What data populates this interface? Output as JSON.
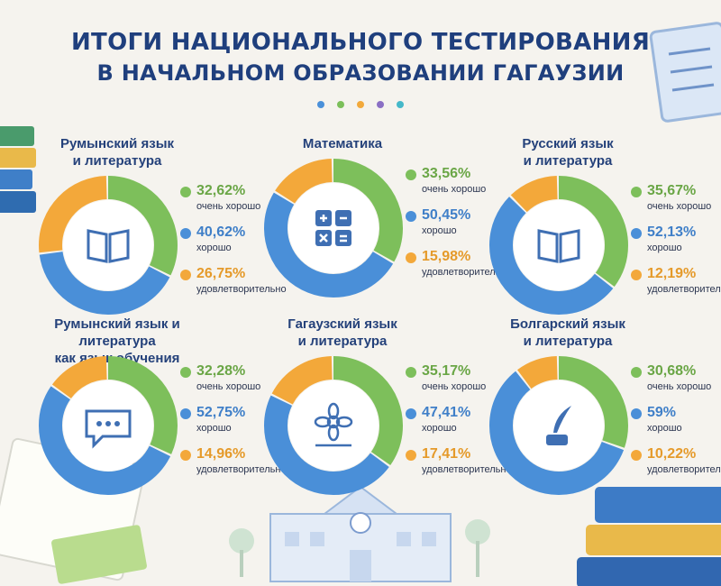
{
  "title": {
    "line1": "ИТОГИ НАЦИОНАЛЬНОГО ТЕСТИРОВАНИЯ",
    "line2": "В НАЧАЛЬНОМ ОБРАЗОВАНИИ ГАГАУЗИИ"
  },
  "accent_dots": [
    "#4a90d9",
    "#7bbf5a",
    "#f2a93b",
    "#8a6fc4",
    "#45b8c9"
  ],
  "colors": {
    "very_good": "#7dbf5b",
    "good": "#4a8fd8",
    "satisfactory": "#f3a83a",
    "very_good_text": "#6aa646",
    "good_text": "#3f7fc8",
    "satisfactory_text": "#e59a2a",
    "title": "#1f3f7d"
  },
  "legend_labels": {
    "very_good": "очень хорошо",
    "good": "хорошо",
    "satisfactory": "удовлетворительно"
  },
  "cards": [
    {
      "title": [
        "Румынский язык",
        "и литература"
      ],
      "icon": "book-icon",
      "very_good": "32,62%",
      "good": "40,62%",
      "satisfactory": "26,75%"
    },
    {
      "title": [
        "Математика"
      ],
      "icon": "calculator-icon",
      "very_good": "33,56%",
      "good": "50,45%",
      "satisfactory": "15,98%"
    },
    {
      "title": [
        "Русский язык",
        "и литература"
      ],
      "icon": "book-icon",
      "very_good": "35,67%",
      "good": "52,13%",
      "satisfactory": "12,19%"
    },
    {
      "title": [
        "Румынский язык и литература",
        "как язык обучения"
      ],
      "icon": "speech-bubble-icon",
      "very_good": "32,28%",
      "good": "52,75%",
      "satisfactory": "14,96%"
    },
    {
      "title": [
        "Гагаузский язык",
        "и литература"
      ],
      "icon": "flower-icon",
      "very_good": "35,17%",
      "good": "47,41%",
      "satisfactory": "17,41%"
    },
    {
      "title": [
        "Болгарский язык",
        "и литература"
      ],
      "icon": "quill-inkpot-icon",
      "very_good": "30,68%",
      "good": "59%",
      "satisfactory": "10,22%"
    }
  ],
  "chart_data": [
    {
      "type": "pie",
      "title": "Румынский язык и литература",
      "categories": [
        "очень хорошо",
        "хорошо",
        "удовлетворительно"
      ],
      "values": [
        32.62,
        40.62,
        26.75
      ]
    },
    {
      "type": "pie",
      "title": "Математика",
      "categories": [
        "очень хорошо",
        "хорошо",
        "удовлетворительно"
      ],
      "values": [
        33.56,
        50.45,
        15.98
      ]
    },
    {
      "type": "pie",
      "title": "Русский язык и литература",
      "categories": [
        "очень хорошо",
        "хорошо",
        "удовлетворительно"
      ],
      "values": [
        35.67,
        52.13,
        12.19
      ]
    },
    {
      "type": "pie",
      "title": "Румынский язык и литература как язык обучения",
      "categories": [
        "очень хорошо",
        "хорошо",
        "удовлетворительно"
      ],
      "values": [
        32.28,
        52.75,
        14.96
      ]
    },
    {
      "type": "pie",
      "title": "Гагаузский язык и литература",
      "categories": [
        "очень хорошо",
        "хорошо",
        "удовлетворительно"
      ],
      "values": [
        35.17,
        47.41,
        17.41
      ]
    },
    {
      "type": "pie",
      "title": "Болгарский язык и литература",
      "categories": [
        "очень хорошо",
        "хорошо",
        "удовлетворительно"
      ],
      "values": [
        30.68,
        59,
        10.22
      ]
    }
  ]
}
